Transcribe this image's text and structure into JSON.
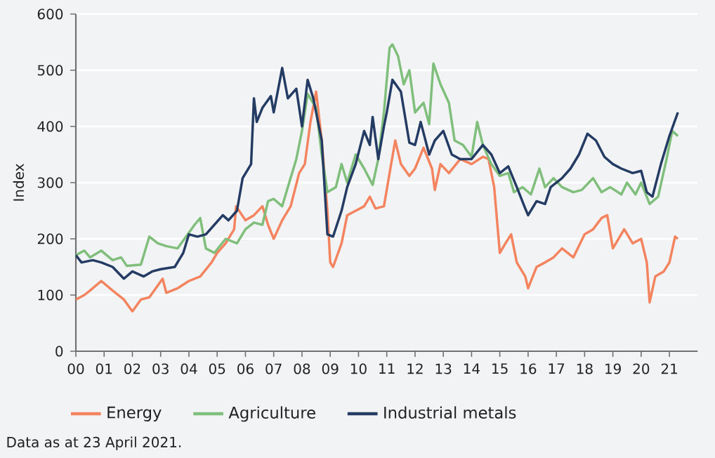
{
  "chart_data": {
    "type": "line",
    "ylabel": "Index",
    "annotations": [
      "Data as at 23 April 2021."
    ],
    "xlim": [
      2000,
      2022
    ],
    "ylim": [
      0,
      600
    ],
    "yticks": [
      0,
      100,
      200,
      300,
      400,
      500,
      600
    ],
    "xticks": [
      {
        "value": 2000,
        "label": "00"
      },
      {
        "value": 2001,
        "label": "01"
      },
      {
        "value": 2002,
        "label": "02"
      },
      {
        "value": 2003,
        "label": "03"
      },
      {
        "value": 2004,
        "label": "04"
      },
      {
        "value": 2005,
        "label": "05"
      },
      {
        "value": 2006,
        "label": "06"
      },
      {
        "value": 2007,
        "label": "07"
      },
      {
        "value": 2008,
        "label": "08"
      },
      {
        "value": 2009,
        "label": "09"
      },
      {
        "value": 2010,
        "label": "10"
      },
      {
        "value": 2011,
        "label": "11"
      },
      {
        "value": 2012,
        "label": "12"
      },
      {
        "value": 2013,
        "label": "13"
      },
      {
        "value": 2014,
        "label": "14"
      },
      {
        "value": 2015,
        "label": "15"
      },
      {
        "value": 2016,
        "label": "16"
      },
      {
        "value": 2017,
        "label": "17"
      },
      {
        "value": 2018,
        "label": "18"
      },
      {
        "value": 2019,
        "label": "19"
      },
      {
        "value": 2020,
        "label": "20"
      },
      {
        "value": 2021,
        "label": "21"
      }
    ],
    "grid": "y",
    "legend": "bottom left",
    "series": [
      {
        "name": "Energy",
        "color": "#f4845f",
        "x": [
          2000,
          2000.3,
          2000.5,
          2000.9,
          2001.3,
          2001.7,
          2002.0,
          2002.3,
          2002.6,
          2003.07,
          2003.2,
          2003.6,
          2004.0,
          2004.4,
          2004.8,
          2005.0,
          2005.3,
          2005.6,
          2005.67,
          2006.0,
          2006.3,
          2006.6,
          2006.8,
          2007.0,
          2007.3,
          2007.6,
          2007.9,
          2008.1,
          2008.3,
          2008.5,
          2008.7,
          2008.9,
          2009.0,
          2009.1,
          2009.4,
          2009.6,
          2009.9,
          2010.2,
          2010.4,
          2010.6,
          2010.9,
          2011.1,
          2011.3,
          2011.5,
          2011.8,
          2012.0,
          2012.3,
          2012.6,
          2012.7,
          2012.9,
          2013.2,
          2013.6,
          2014.0,
          2014.4,
          2014.6,
          2014.8,
          2015.0,
          2015.2,
          2015.4,
          2015.6,
          2015.9,
          2016.0,
          2016.3,
          2016.6,
          2016.9,
          2017.2,
          2017.6,
          2018.0,
          2018.3,
          2018.6,
          2018.8,
          2019.0,
          2019.4,
          2019.7,
          2020.0,
          2020.2,
          2020.3,
          2020.5,
          2020.8,
          2021.0,
          2021.2,
          2021.3
        ],
        "values": [
          92,
          100,
          108,
          125,
          108,
          92,
          71,
          92,
          96,
          129,
          104,
          112,
          125,
          133,
          158,
          175,
          192,
          217,
          258,
          233,
          242,
          258,
          225,
          200,
          233,
          258,
          317,
          333,
          408,
          462,
          375,
          250,
          158,
          150,
          192,
          242,
          250,
          258,
          275,
          254,
          258,
          317,
          375,
          333,
          312,
          325,
          362,
          325,
          287,
          333,
          317,
          342,
          333,
          346,
          342,
          292,
          175,
          192,
          208,
          158,
          133,
          112,
          150,
          158,
          167,
          183,
          167,
          208,
          217,
          237,
          242,
          183,
          217,
          192,
          200,
          158,
          87,
          133,
          142,
          158,
          204,
          200
        ]
      },
      {
        "name": "Agriculture",
        "color": "#7fbf7b",
        "x": [
          2000,
          2000.3,
          2000.5,
          2000.9,
          2001.3,
          2001.6,
          2001.8,
          2002.3,
          2002.6,
          2002.9,
          2003.2,
          2003.6,
          2003.9,
          2004.2,
          2004.4,
          2004.6,
          2004.9,
          2005.3,
          2005.7,
          2006.0,
          2006.3,
          2006.6,
          2006.8,
          2007.0,
          2007.3,
          2007.5,
          2007.8,
          2008.0,
          2008.2,
          2008.5,
          2008.7,
          2008.9,
          2009.2,
          2009.4,
          2009.6,
          2009.9,
          2010.2,
          2010.5,
          2010.7,
          2010.9,
          2011.1,
          2011.2,
          2011.4,
          2011.6,
          2011.8,
          2012.0,
          2012.3,
          2012.5,
          2012.65,
          2012.9,
          2013.2,
          2013.4,
          2013.7,
          2014.0,
          2014.2,
          2014.4,
          2014.7,
          2015.0,
          2015.3,
          2015.5,
          2015.8,
          2016.1,
          2016.4,
          2016.6,
          2016.9,
          2017.2,
          2017.6,
          2017.9,
          2018.3,
          2018.6,
          2018.9,
          2019.3,
          2019.5,
          2019.8,
          2020.0,
          2020.3,
          2020.6,
          2020.9,
          2021.1,
          2021.3
        ],
        "values": [
          171,
          179,
          167,
          179,
          162,
          167,
          152,
          154,
          204,
          192,
          187,
          183,
          204,
          225,
          237,
          183,
          175,
          200,
          192,
          217,
          229,
          225,
          267,
          271,
          258,
          292,
          342,
          392,
          458,
          433,
          350,
          283,
          292,
          333,
          300,
          350,
          325,
          296,
          342,
          425,
          540,
          546,
          525,
          475,
          500,
          425,
          442,
          404,
          512,
          475,
          442,
          375,
          367,
          346,
          408,
          367,
          333,
          312,
          317,
          283,
          292,
          279,
          325,
          292,
          308,
          292,
          283,
          287,
          308,
          283,
          292,
          279,
          300,
          279,
          300,
          262,
          275,
          342,
          392,
          383
        ]
      },
      {
        "name": "Industrial metals",
        "color": "#243b63",
        "x": [
          2000,
          2000.2,
          2000.6,
          2000.9,
          2001.3,
          2001.7,
          2002.0,
          2002.4,
          2002.7,
          2003.0,
          2003.5,
          2003.8,
          2004.0,
          2004.3,
          2004.6,
          2004.9,
          2005.2,
          2005.4,
          2005.7,
          2005.9,
          2006.2,
          2006.3,
          2006.4,
          2006.6,
          2006.9,
          2007.0,
          2007.3,
          2007.5,
          2007.8,
          2008.0,
          2008.2,
          2008.4,
          2008.7,
          2008.9,
          2009.1,
          2009.4,
          2009.6,
          2009.9,
          2010.2,
          2010.4,
          2010.5,
          2010.7,
          2010.9,
          2011.0,
          2011.2,
          2011.5,
          2011.8,
          2012.0,
          2012.2,
          2012.5,
          2012.7,
          2013.0,
          2013.3,
          2013.6,
          2014.0,
          2014.4,
          2014.7,
          2015.0,
          2015.3,
          2015.6,
          2015.9,
          2016.0,
          2016.3,
          2016.6,
          2016.8,
          2017.2,
          2017.5,
          2017.8,
          2018.1,
          2018.4,
          2018.7,
          2019.0,
          2019.3,
          2019.7,
          2020.0,
          2020.2,
          2020.4,
          2020.7,
          2021.0,
          2021.3
        ],
        "values": [
          171,
          158,
          162,
          158,
          150,
          129,
          142,
          133,
          142,
          146,
          150,
          175,
          208,
          204,
          208,
          225,
          242,
          233,
          250,
          308,
          333,
          450,
          408,
          433,
          454,
          425,
          504,
          450,
          467,
          400,
          483,
          450,
          375,
          208,
          204,
          250,
          292,
          333,
          392,
          367,
          417,
          342,
          400,
          425,
          483,
          462,
          371,
          367,
          408,
          350,
          375,
          392,
          350,
          342,
          342,
          367,
          350,
          317,
          329,
          292,
          254,
          242,
          267,
          262,
          292,
          308,
          325,
          350,
          387,
          375,
          346,
          333,
          325,
          317,
          321,
          283,
          275,
          333,
          383,
          425
        ]
      }
    ]
  }
}
